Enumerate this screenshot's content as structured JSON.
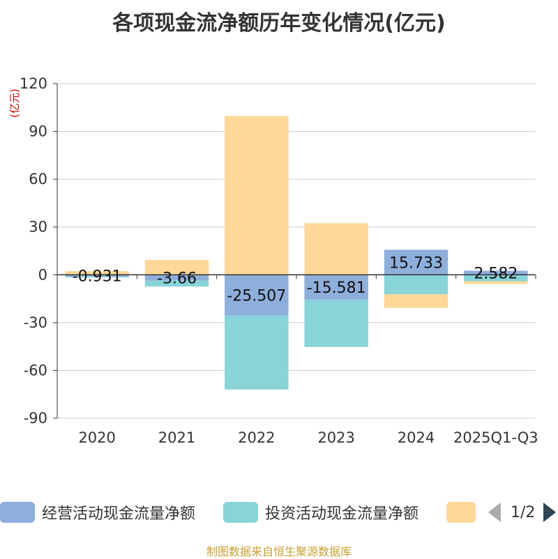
{
  "chart_data": {
    "type": "bar",
    "stacked": true,
    "title": "各项现金流净额历年变化情况(亿元)",
    "ylabel": "(亿元)",
    "ylim": [
      -90,
      120
    ],
    "yticks": [
      120,
      90,
      60,
      30,
      0,
      -30,
      -60,
      -90
    ],
    "categories": [
      "2020",
      "2021",
      "2022",
      "2023",
      "2024",
      "2025Q1-Q3"
    ],
    "grid": true,
    "series": [
      {
        "name": "经营活动现金流量净额",
        "color": "#8eaedc",
        "values": [
          -0.931,
          -3.66,
          -25.507,
          -15.581,
          15.733,
          2.582
        ],
        "labels": [
          "-0.931",
          "-3.66",
          "-25.507",
          "-15.581",
          "15.733",
          "2.582"
        ]
      },
      {
        "name": "投资活动现金流量净额",
        "color": "#88d4d8",
        "values": [
          -0.7,
          -3.7,
          -46.5,
          -29.7,
          -12.2,
          -4.0
        ]
      },
      {
        "name": "",
        "color": "#fdd898",
        "values": [
          2.3,
          9.4,
          99.7,
          32.4,
          -8.5,
          -1.7
        ]
      }
    ],
    "legend": {
      "position": "bottom",
      "page": "1/2"
    }
  },
  "source": "制图数据来自恒生聚源数据库"
}
